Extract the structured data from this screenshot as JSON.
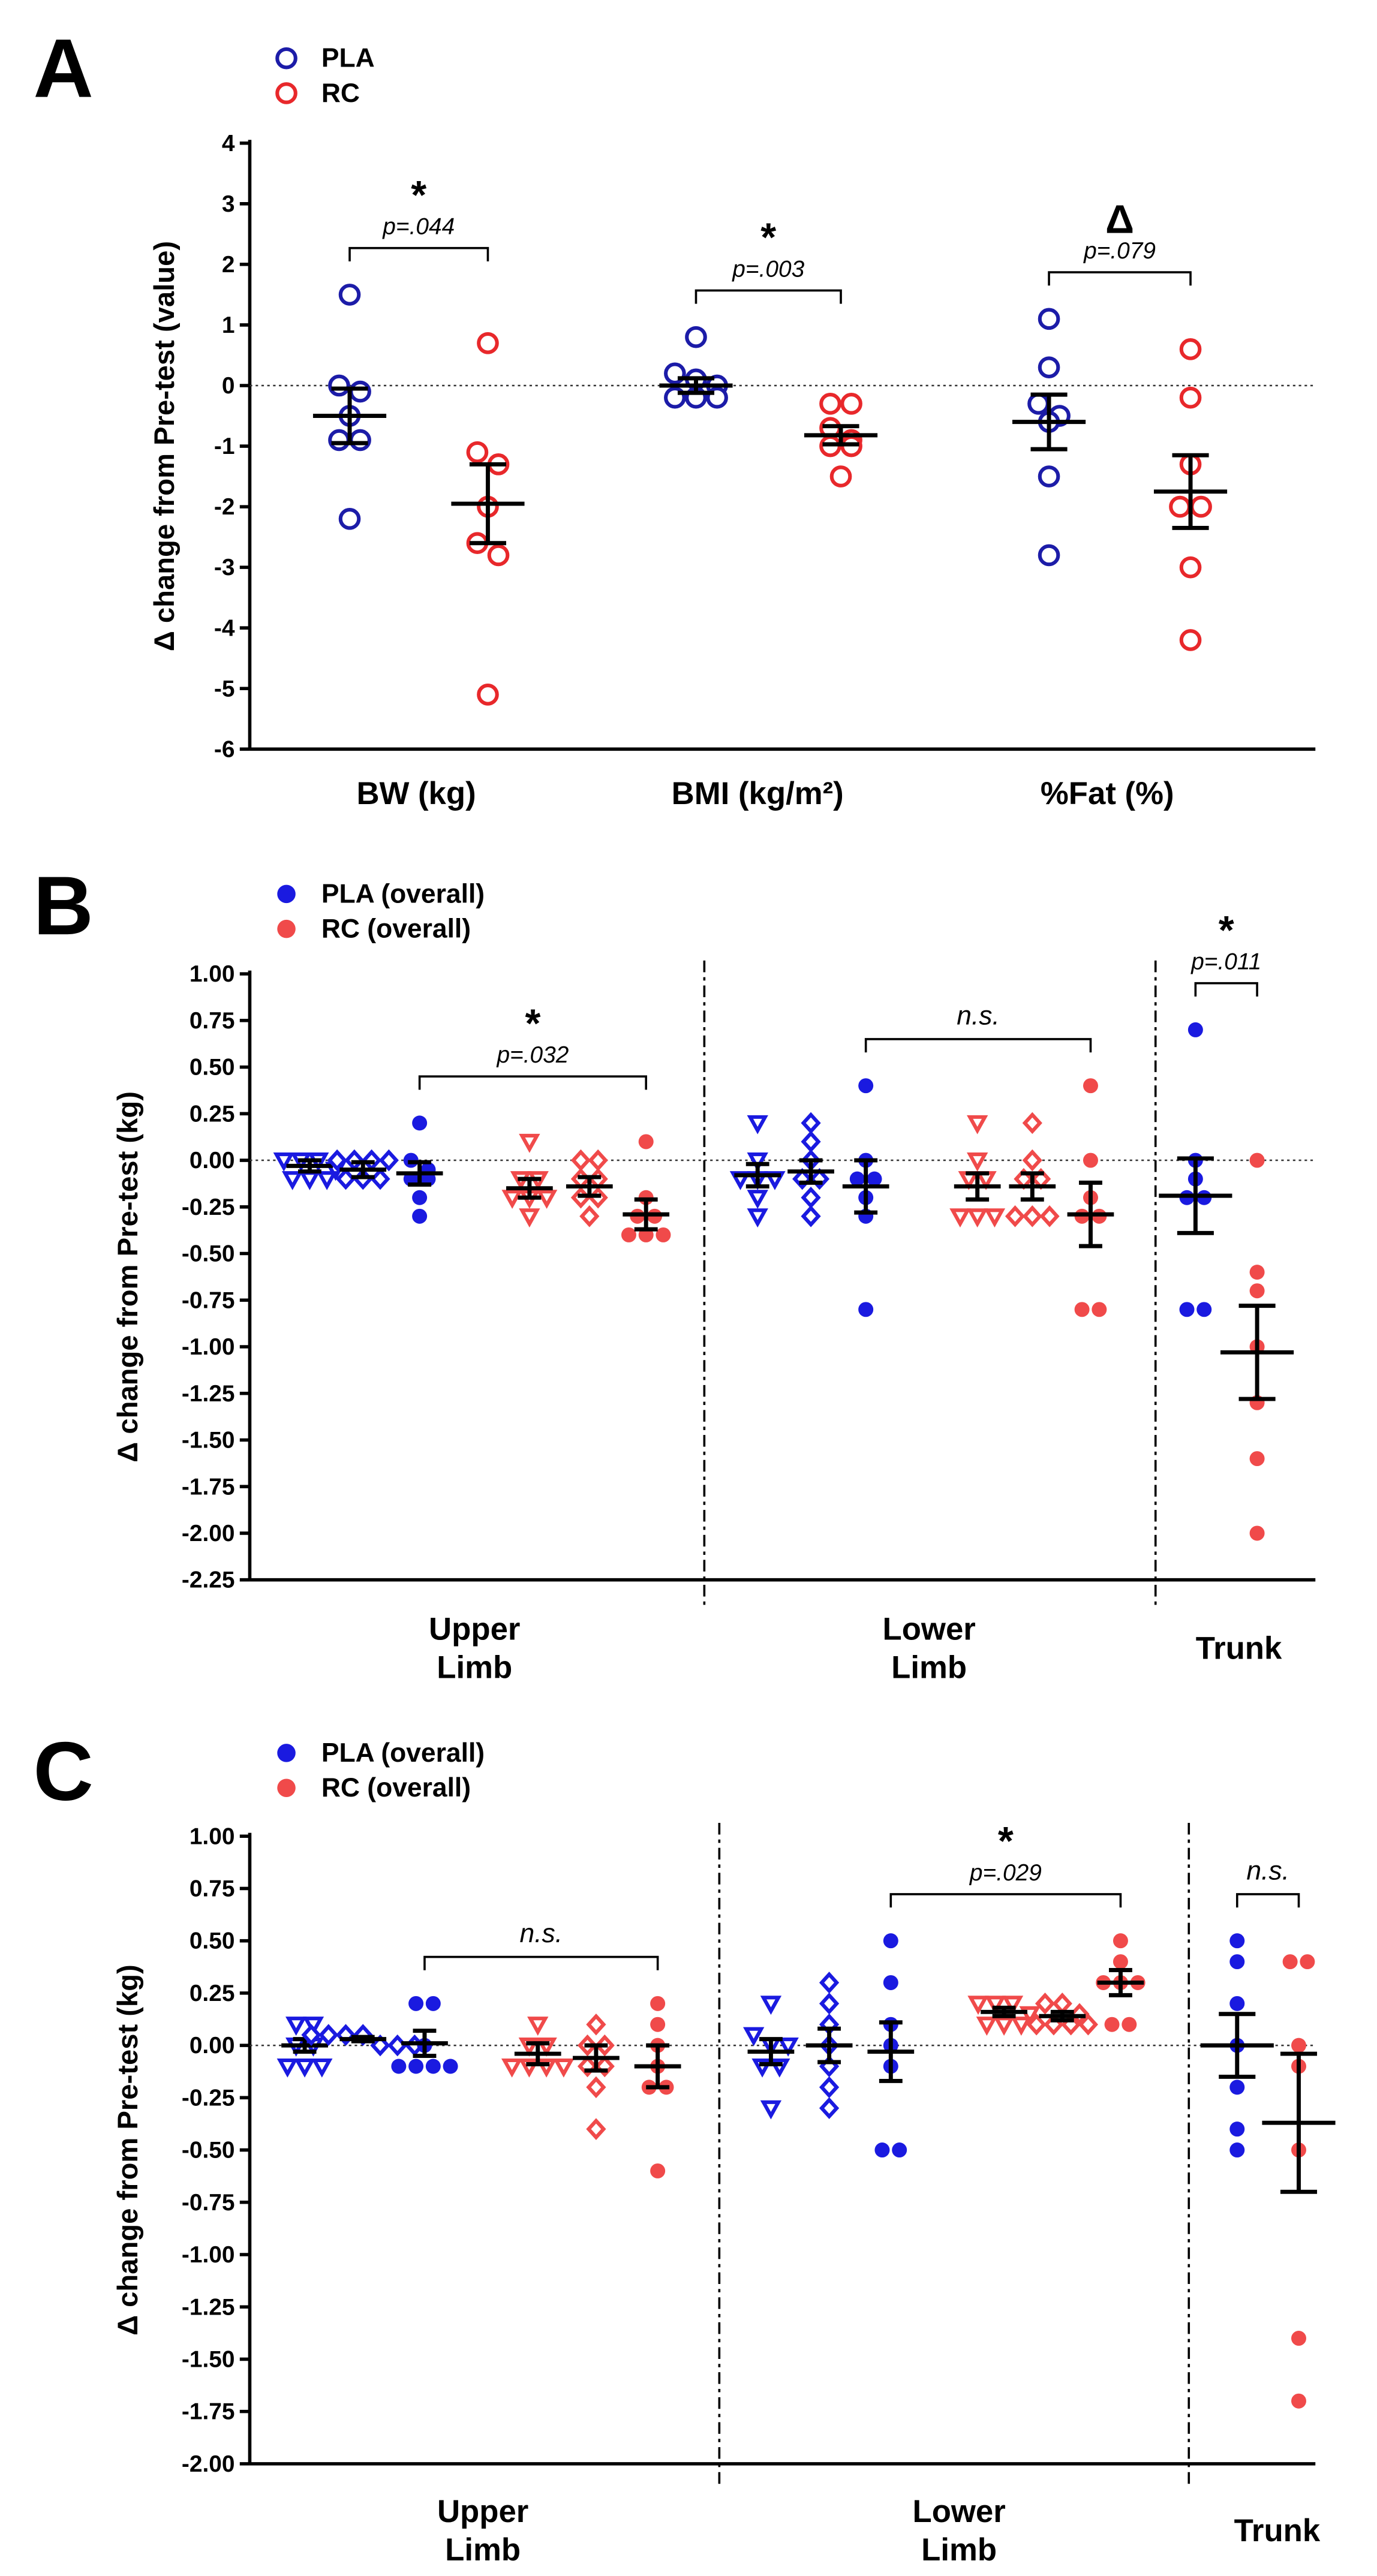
{
  "chart_data": [
    {
      "type": "dotplot",
      "panel": "A",
      "ylabel": "Δ change from Pre-test (value)",
      "ylim": [
        -6,
        4
      ],
      "yticks": [
        -6,
        -5,
        -4,
        -3,
        -2,
        -1,
        0,
        1,
        2,
        3,
        4
      ],
      "series": [
        {
          "name": "PLA",
          "color": "#1c1ca8",
          "marker": "circle-open"
        },
        {
          "name": "RC",
          "color": "#e8282b",
          "marker": "circle-open"
        }
      ],
      "categories": [
        {
          "label": "BW (kg)",
          "mark": "*",
          "p": "p=.044",
          "groups": [
            [
              {
                "marker": "circle-open",
                "values": [
                  1.5,
                  0,
                  -0.1,
                  -0.5,
                  -0.9,
                  -0.9,
                  -2.2
                ],
                "mean": -0.5,
                "sem": 0.45
              }
            ],
            [
              {
                "marker": "circle-open",
                "values": [
                  0.7,
                  -1.1,
                  -1.3,
                  -2.0,
                  -2.6,
                  -2.8,
                  -5.1
                ],
                "mean": -1.95,
                "sem": 0.65
              }
            ]
          ]
        },
        {
          "label": "BMI (kg/m²)",
          "mark": "*",
          "p": "p=.003",
          "groups": [
            [
              {
                "marker": "circle-open",
                "values": [
                  0.8,
                  0.2,
                  0.1,
                  0,
                  -0.2,
                  -0.2,
                  -0.2
                ],
                "mean": 0,
                "sem": 0.12
              }
            ],
            [
              {
                "marker": "circle-open",
                "values": [
                  -0.3,
                  -0.3,
                  -0.7,
                  -0.9,
                  -1.0,
                  -1.0,
                  -1.5
                ],
                "mean": -0.82,
                "sem": 0.15
              }
            ]
          ]
        },
        {
          "label": "%Fat (%)",
          "mark": "Δ",
          "p": "p=.079",
          "groups": [
            [
              {
                "marker": "circle-open",
                "values": [
                  1.1,
                  0.3,
                  -0.3,
                  -0.5,
                  -0.6,
                  -1.5,
                  -2.8
                ],
                "mean": -0.6,
                "sem": 0.45
              }
            ],
            [
              {
                "marker": "circle-open",
                "values": [
                  0.6,
                  -0.2,
                  -1.3,
                  -2.0,
                  -2.0,
                  -3.0,
                  -4.2
                ],
                "mean": -1.75,
                "sem": 0.6
              }
            ]
          ]
        }
      ]
    },
    {
      "type": "dotplot",
      "panel": "B",
      "ylabel": "Δ change from Pre-test (kg)",
      "ylim": [
        -2.25,
        1.0
      ],
      "yticks": [
        {
          "value": -2.25,
          "label": "-2.25"
        },
        {
          "value": -2.0,
          "label": "-2.00"
        },
        {
          "value": -1.75,
          "label": "-1.75"
        },
        {
          "value": -1.5,
          "label": "-1.50"
        },
        {
          "value": -1.25,
          "label": "-1.25"
        },
        {
          "value": -1.0,
          "label": "-1.00"
        },
        {
          "value": -0.75,
          "label": "-0.75"
        },
        {
          "value": -0.5,
          "label": "-0.50"
        },
        {
          "value": -0.25,
          "label": "-0.25"
        },
        {
          "value": 0,
          "label": "0.00"
        },
        {
          "value": 0.25,
          "label": "0.25"
        },
        {
          "value": 0.5,
          "label": "0.50"
        },
        {
          "value": 0.75,
          "label": "0.75"
        },
        {
          "value": 1.0,
          "label": "1.00"
        }
      ],
      "series": [
        {
          "name": "PLA (overall)",
          "color": "#1a1ae0",
          "marker": "circle"
        },
        {
          "name": "RC (overall)",
          "color": "#f04a4a",
          "marker": "circle"
        }
      ],
      "categories": [
        {
          "label": [
            "Upper",
            "Limb"
          ],
          "mark": "*",
          "p": "p=.032",
          "groups": [
            [
              {
                "marker": "triangle-down-open",
                "values": [
                  0,
                  0,
                  0,
                  -0.05,
                  -0.1,
                  -0.1,
                  -0.1
                ],
                "mean": -0.03,
                "sem": 0.03
              },
              {
                "marker": "diamond-open",
                "values": [
                  0,
                  0,
                  0,
                  0,
                  -0.1,
                  -0.1,
                  -0.1
                ],
                "mean": -0.05,
                "sem": 0.04
              },
              {
                "marker": "circle",
                "values": [
                  0.2,
                  0,
                  -0.05,
                  -0.1,
                  -0.1,
                  -0.2,
                  -0.3
                ],
                "mean": -0.07,
                "sem": 0.06
              }
            ],
            [
              {
                "marker": "triangle-down-open",
                "values": [
                  0.1,
                  -0.1,
                  -0.1,
                  -0.2,
                  -0.2,
                  -0.2,
                  -0.3
                ],
                "mean": -0.15,
                "sem": 0.05
              },
              {
                "marker": "diamond-open",
                "values": [
                  0,
                  0,
                  -0.1,
                  -0.1,
                  -0.2,
                  -0.2,
                  -0.3
                ],
                "mean": -0.14,
                "sem": 0.05
              },
              {
                "marker": "circle",
                "values": [
                  0.1,
                  -0.2,
                  -0.3,
                  -0.3,
                  -0.4,
                  -0.4,
                  -0.4
                ],
                "mean": -0.29,
                "sem": 0.08
              }
            ]
          ]
        },
        {
          "label": [
            "Lower",
            "Limb"
          ],
          "mark": "n.s.",
          "groups": [
            [
              {
                "marker": "triangle-down-open",
                "values": [
                  0.2,
                  0,
                  -0.1,
                  -0.1,
                  -0.1,
                  -0.2,
                  -0.3
                ],
                "mean": -0.08,
                "sem": 0.06
              },
              {
                "marker": "diamond-open",
                "values": [
                  0.2,
                  0.1,
                  0,
                  -0.1,
                  -0.1,
                  -0.2,
                  -0.3
                ],
                "mean": -0.06,
                "sem": 0.06
              },
              {
                "marker": "circle",
                "values": [
                  0.4,
                  0,
                  -0.1,
                  -0.1,
                  -0.2,
                  -0.3,
                  -0.8
                ],
                "mean": -0.14,
                "sem": 0.14
              }
            ],
            [
              {
                "marker": "triangle-down-open",
                "values": [
                  0.2,
                  0,
                  -0.1,
                  -0.1,
                  -0.3,
                  -0.3,
                  -0.3
                ],
                "mean": -0.14,
                "sem": 0.07
              },
              {
                "marker": "diamond-open",
                "values": [
                  0.2,
                  0,
                  -0.1,
                  -0.1,
                  -0.3,
                  -0.3,
                  -0.3
                ],
                "mean": -0.14,
                "sem": 0.07
              },
              {
                "marker": "circle",
                "values": [
                  0.4,
                  0,
                  -0.2,
                  -0.3,
                  -0.3,
                  -0.8,
                  -0.8
                ],
                "mean": -0.29,
                "sem": 0.17
              }
            ]
          ]
        },
        {
          "label": [
            "Trunk"
          ],
          "mark": "*",
          "p": "p=.011",
          "groups": [
            [
              {
                "marker": "circle",
                "values": [
                  0.7,
                  0,
                  -0.1,
                  -0.2,
                  -0.2,
                  -0.8,
                  -0.8
                ],
                "mean": -0.19,
                "sem": 0.2
              }
            ],
            [
              {
                "marker": "circle",
                "values": [
                  0,
                  -0.6,
                  -0.7,
                  -1.0,
                  -1.3,
                  -1.6,
                  -2.0
                ],
                "mean": -1.03,
                "sem": 0.25
              }
            ]
          ]
        }
      ]
    },
    {
      "type": "dotplot",
      "panel": "C",
      "ylabel": "Δ change from Pre-test (kg)",
      "ylim": [
        -2.0,
        1.0
      ],
      "yticks": [
        {
          "value": -2.0,
          "label": "-2.00"
        },
        {
          "value": -1.75,
          "label": "-1.75"
        },
        {
          "value": -1.5,
          "label": "-1.50"
        },
        {
          "value": -1.25,
          "label": "-1.25"
        },
        {
          "value": -1.0,
          "label": "-1.00"
        },
        {
          "value": -0.75,
          "label": "-0.75"
        },
        {
          "value": -0.5,
          "label": "-0.50"
        },
        {
          "value": -0.25,
          "label": "-0.25"
        },
        {
          "value": 0,
          "label": "0.00"
        },
        {
          "value": 0.25,
          "label": "0.25"
        },
        {
          "value": 0.5,
          "label": "0.50"
        },
        {
          "value": 0.75,
          "label": "0.75"
        },
        {
          "value": 1.0,
          "label": "1.00"
        }
      ],
      "series": [
        {
          "name": "PLA (overall)",
          "color": "#1a1ae0",
          "marker": "circle"
        },
        {
          "name": "RC (overall)",
          "color": "#f04a4a",
          "marker": "circle"
        }
      ],
      "categories": [
        {
          "label": [
            "Upper",
            "Limb"
          ],
          "mark": "n.s.",
          "groups": [
            [
              {
                "marker": "triangle-down-open",
                "values": [
                  0.1,
                  0.1,
                  0,
                  0,
                  -0.1,
                  -0.1,
                  -0.1
                ],
                "mean": 0,
                "sem": 0.03
              },
              {
                "marker": "diamond-open",
                "values": [
                  0.05,
                  0.05,
                  0.05,
                  0.05,
                  0,
                  0,
                  0
                ],
                "mean": 0.03,
                "sem": 0.01
              },
              {
                "marker": "circle",
                "values": [
                  0.2,
                  0.2,
                  0,
                  -0.1,
                  -0.1,
                  -0.1,
                  -0.1
                ],
                "mean": 0.01,
                "sem": 0.06
              }
            ],
            [
              {
                "marker": "triangle-down-open",
                "values": [
                  0.1,
                  0,
                  0,
                  -0.1,
                  -0.1,
                  -0.1,
                  -0.1
                ],
                "mean": -0.04,
                "sem": 0.05
              },
              {
                "marker": "diamond-open",
                "values": [
                  0.1,
                  0,
                  0,
                  -0.1,
                  -0.1,
                  -0.2,
                  -0.4
                ],
                "mean": -0.06,
                "sem": 0.06
              },
              {
                "marker": "circle",
                "values": [
                  0.2,
                  0.1,
                  0,
                  -0.1,
                  -0.2,
                  -0.2,
                  -0.6
                ],
                "mean": -0.1,
                "sem": 0.1
              }
            ]
          ]
        },
        {
          "label": [
            "Lower",
            "Limb"
          ],
          "mark": "*",
          "p": "p=.029",
          "groups": [
            [
              {
                "marker": "triangle-down-open",
                "values": [
                  0.2,
                  0.05,
                  0,
                  0,
                  -0.1,
                  -0.1,
                  -0.3
                ],
                "mean": -0.03,
                "sem": 0.06
              },
              {
                "marker": "diamond-open",
                "values": [
                  0.3,
                  0.2,
                  0.1,
                  0,
                  -0.1,
                  -0.2,
                  -0.3
                ],
                "mean": 0,
                "sem": 0.08
              },
              {
                "marker": "circle",
                "values": [
                  0.5,
                  0.3,
                  0.1,
                  0,
                  -0.1,
                  -0.5,
                  -0.5
                ],
                "mean": -0.03,
                "sem": 0.14
              }
            ],
            [
              {
                "marker": "triangle-down-open",
                "values": [
                  0.2,
                  0.2,
                  0.2,
                  0.15,
                  0.1,
                  0.1,
                  0.1
                ],
                "mean": 0.16,
                "sem": 0.02
              },
              {
                "marker": "diamond-open",
                "values": [
                  0.2,
                  0.2,
                  0.15,
                  0.1,
                  0.1,
                  0.1,
                  0.1
                ],
                "mean": 0.14,
                "sem": 0.02
              },
              {
                "marker": "circle",
                "values": [
                  0.5,
                  0.4,
                  0.3,
                  0.3,
                  0.3,
                  0.1,
                  0.1
                ],
                "mean": 0.3,
                "sem": 0.06
              }
            ]
          ]
        },
        {
          "label": [
            "Trunk"
          ],
          "mark": "n.s.",
          "groups": [
            [
              {
                "marker": "circle",
                "values": [
                  0.5,
                  0.4,
                  0.2,
                  0,
                  -0.2,
                  -0.4,
                  -0.5
                ],
                "mean": 0,
                "sem": 0.15
              }
            ],
            [
              {
                "marker": "circle",
                "values": [
                  0.4,
                  0.4,
                  0,
                  -0.1,
                  -0.5,
                  -1.4,
                  -1.7
                ],
                "mean": -0.37,
                "sem": 0.33
              }
            ]
          ]
        }
      ]
    }
  ]
}
